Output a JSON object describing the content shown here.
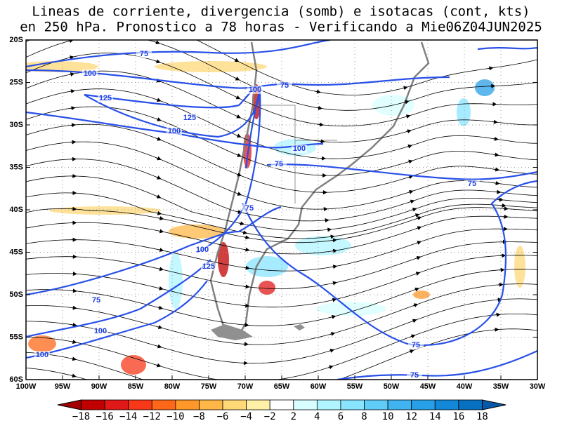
{
  "title": [
    "Lineas de corriente, divergencia (somb) e isotacas (cont, kts)",
    "en 250 hPa. Pronostico a 78 horas - Verificando a Mie06Z04JUN2025"
  ],
  "lat_labels": [
    "20S",
    "25S",
    "30S",
    "35S",
    "40S",
    "45S",
    "50S",
    "55S",
    "60S"
  ],
  "lon_labels": [
    "100W",
    "95W",
    "90W",
    "85W",
    "80W",
    "75W",
    "70W",
    "65W",
    "60W",
    "55W",
    "50W",
    "45W",
    "40W",
    "35W",
    "30W"
  ],
  "isotach_labels": [
    "75",
    "100",
    "125",
    "125",
    "100",
    "100",
    "75",
    "100",
    "75",
    "75",
    "75",
    "100",
    "125",
    "75",
    "100",
    "100",
    "75",
    "75"
  ],
  "colorbar": {
    "labels": [
      "−18",
      "−16",
      "−14",
      "−12",
      "−10",
      "−8",
      "−6",
      "−4",
      "−2",
      "2",
      "4",
      "6",
      "8",
      "10",
      "12",
      "14",
      "16",
      "18"
    ],
    "colors": [
      "#a00000",
      "#c00000",
      "#e01818",
      "#f83818",
      "#ff6818",
      "#ff9828",
      "#ffb848",
      "#ffd878",
      "#fff0a8",
      "#ffffff",
      "#d8ffff",
      "#b0f4ff",
      "#88e4ff",
      "#60ccf8",
      "#40b4f0",
      "#28a0e8",
      "#1488d8",
      "#0870c0",
      "#0858a8"
    ]
  }
}
